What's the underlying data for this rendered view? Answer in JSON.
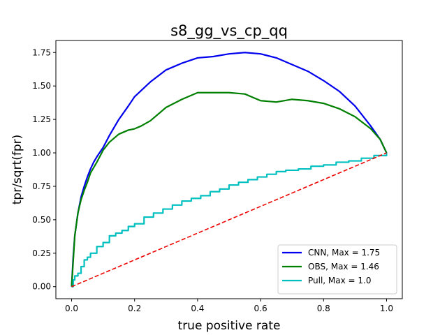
{
  "chart_data": {
    "type": "line",
    "title": "s8_gg_vs_cp_qq",
    "xlabel": "true positive rate",
    "ylabel": "tpr/sqrt(fpr)",
    "xlim": [
      -0.05,
      1.05
    ],
    "ylim": [
      -0.09,
      1.84
    ],
    "xticks": [
      0.0,
      0.2,
      0.4,
      0.6,
      0.8,
      1.0
    ],
    "xtick_labels": [
      "0.0",
      "0.2",
      "0.4",
      "0.6",
      "0.8",
      "1.0"
    ],
    "yticks": [
      0.0,
      0.25,
      0.5,
      0.75,
      1.0,
      1.25,
      1.5,
      1.75
    ],
    "ytick_labels": [
      "0.00",
      "0.25",
      "0.50",
      "0.75",
      "1.00",
      "1.25",
      "1.50",
      "1.75"
    ],
    "grid": false,
    "legend_position": "lower-right",
    "series": [
      {
        "name": "CNN, Max = 1.75",
        "color": "#0000ee",
        "style": "solid",
        "x": [
          0.0,
          0.005,
          0.01,
          0.02,
          0.03,
          0.04,
          0.05,
          0.06,
          0.07,
          0.08,
          0.1,
          0.12,
          0.15,
          0.18,
          0.2,
          0.25,
          0.3,
          0.35,
          0.4,
          0.45,
          0.5,
          0.55,
          0.6,
          0.65,
          0.7,
          0.75,
          0.8,
          0.85,
          0.9,
          0.95,
          0.98,
          1.0
        ],
        "y": [
          0.0,
          0.22,
          0.38,
          0.55,
          0.67,
          0.75,
          0.82,
          0.88,
          0.93,
          0.97,
          1.04,
          1.13,
          1.25,
          1.35,
          1.42,
          1.53,
          1.62,
          1.67,
          1.71,
          1.72,
          1.74,
          1.75,
          1.74,
          1.71,
          1.66,
          1.61,
          1.54,
          1.46,
          1.35,
          1.2,
          1.1,
          1.0
        ]
      },
      {
        "name": "OBS, Max = 1.46",
        "color": "#008000",
        "style": "solid",
        "x": [
          0.0,
          0.01,
          0.02,
          0.03,
          0.04,
          0.05,
          0.06,
          0.08,
          0.1,
          0.12,
          0.15,
          0.18,
          0.2,
          0.22,
          0.25,
          0.3,
          0.35,
          0.4,
          0.45,
          0.5,
          0.55,
          0.6,
          0.65,
          0.7,
          0.75,
          0.8,
          0.85,
          0.9,
          0.95,
          0.98,
          1.0
        ],
        "y": [
          0.0,
          0.38,
          0.55,
          0.65,
          0.72,
          0.78,
          0.85,
          0.93,
          1.02,
          1.08,
          1.14,
          1.17,
          1.18,
          1.2,
          1.24,
          1.34,
          1.4,
          1.45,
          1.45,
          1.45,
          1.44,
          1.39,
          1.38,
          1.4,
          1.39,
          1.37,
          1.33,
          1.27,
          1.18,
          1.1,
          1.0
        ]
      },
      {
        "name": "Pull, Max = 1.0",
        "color": "#00bfbf",
        "style": "step",
        "x": [
          0.0,
          0.005,
          0.01,
          0.02,
          0.03,
          0.04,
          0.05,
          0.06,
          0.08,
          0.1,
          0.12,
          0.14,
          0.16,
          0.18,
          0.2,
          0.23,
          0.26,
          0.29,
          0.32,
          0.35,
          0.38,
          0.41,
          0.44,
          0.47,
          0.5,
          0.53,
          0.56,
          0.59,
          0.62,
          0.65,
          0.68,
          0.72,
          0.76,
          0.8,
          0.84,
          0.88,
          0.92,
          0.96,
          1.0
        ],
        "y": [
          0.0,
          0.05,
          0.08,
          0.1,
          0.15,
          0.2,
          0.22,
          0.25,
          0.3,
          0.33,
          0.38,
          0.4,
          0.42,
          0.45,
          0.47,
          0.52,
          0.55,
          0.58,
          0.61,
          0.64,
          0.66,
          0.68,
          0.71,
          0.73,
          0.76,
          0.78,
          0.8,
          0.82,
          0.84,
          0.86,
          0.87,
          0.88,
          0.9,
          0.91,
          0.93,
          0.94,
          0.96,
          0.98,
          1.0
        ]
      },
      {
        "name": "",
        "color": "#ee0000",
        "style": "dashed",
        "x": [
          0.0,
          1.0
        ],
        "y": [
          0.0,
          1.0
        ]
      }
    ]
  }
}
